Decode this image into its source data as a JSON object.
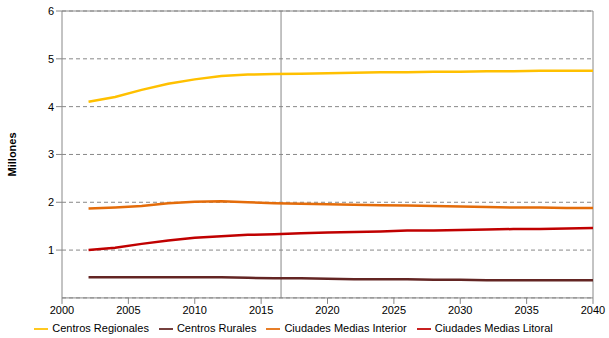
{
  "chart_data": {
    "type": "line",
    "y_label": "Millones",
    "x": [
      2002,
      2004,
      2006,
      2008,
      2010,
      2012,
      2014,
      2016,
      2018,
      2020,
      2022,
      2024,
      2026,
      2028,
      2030,
      2032,
      2034,
      2036,
      2038,
      2040
    ],
    "series": [
      {
        "name": "Centros Regionales",
        "color": "#FFC000",
        "values": [
          4.1,
          4.2,
          4.35,
          4.48,
          4.57,
          4.64,
          4.67,
          4.68,
          4.69,
          4.7,
          4.71,
          4.72,
          4.72,
          4.73,
          4.73,
          4.74,
          4.74,
          4.75,
          4.75,
          4.75
        ]
      },
      {
        "name": "Ciudades Medias Interior",
        "color": "#E46C0A",
        "values": [
          1.87,
          1.89,
          1.92,
          1.98,
          2.01,
          2.02,
          2.0,
          1.98,
          1.97,
          1.96,
          1.95,
          1.94,
          1.93,
          1.92,
          1.91,
          1.9,
          1.89,
          1.89,
          1.88,
          1.88
        ]
      },
      {
        "name": "Ciudades Medias Litoral",
        "color": "#C00000",
        "values": [
          1.0,
          1.05,
          1.13,
          1.2,
          1.26,
          1.29,
          1.32,
          1.33,
          1.35,
          1.37,
          1.38,
          1.39,
          1.41,
          1.41,
          1.42,
          1.43,
          1.44,
          1.44,
          1.45,
          1.46
        ]
      },
      {
        "name": "Centros Rurales",
        "color": "#632523",
        "values": [
          0.43,
          0.43,
          0.43,
          0.43,
          0.43,
          0.43,
          0.42,
          0.41,
          0.41,
          0.4,
          0.39,
          0.39,
          0.39,
          0.38,
          0.38,
          0.37,
          0.37,
          0.37,
          0.37,
          0.37
        ]
      }
    ],
    "xlim": [
      2000,
      2040
    ],
    "xticks": [
      2000,
      2005,
      2010,
      2015,
      2020,
      2025,
      2030,
      2035,
      2040
    ],
    "ylim": [
      0,
      6
    ],
    "yticks": [
      1,
      2,
      3,
      4,
      5,
      6
    ],
    "grid": true,
    "vline": 2016.5,
    "legend": "bottom"
  }
}
